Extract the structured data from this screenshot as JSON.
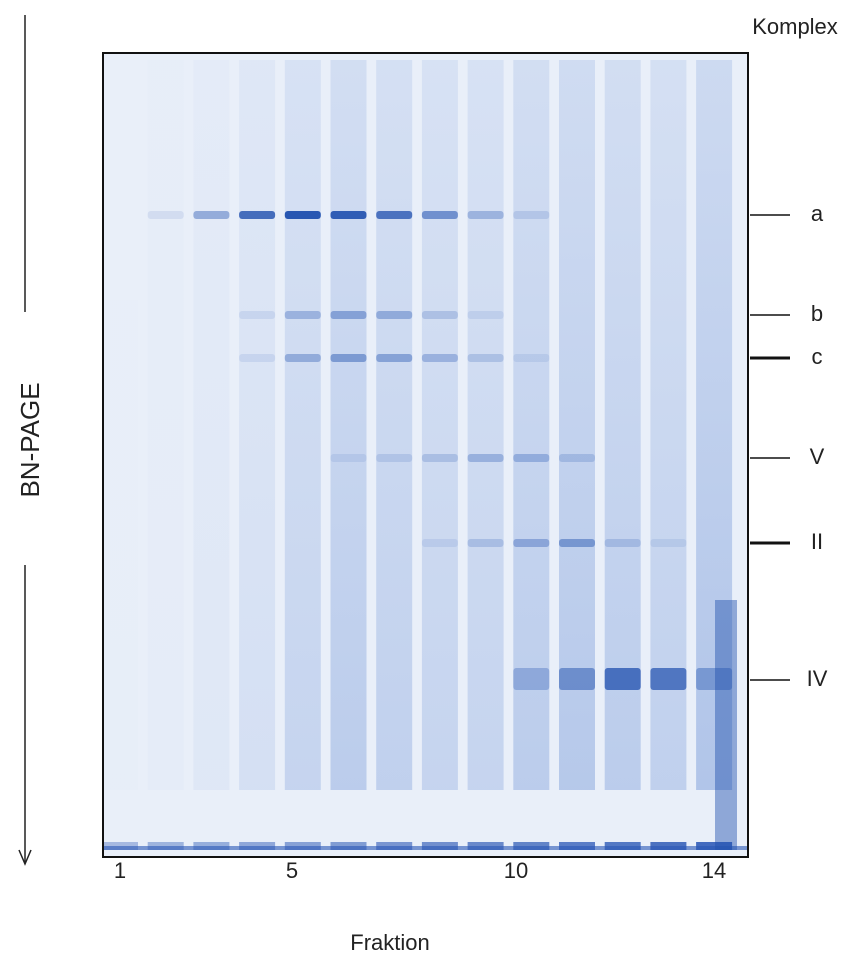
{
  "header": {
    "title": "Komplex"
  },
  "bands": [
    {
      "label": "a"
    },
    {
      "label": "b"
    },
    {
      "label": "c"
    },
    {
      "label": "V"
    },
    {
      "label": "II"
    },
    {
      "label": "IV"
    }
  ],
  "lanes": [
    {
      "label": "1"
    },
    {
      "label": "5"
    },
    {
      "label": "10"
    },
    {
      "label": "14"
    }
  ],
  "x_axis": {
    "label": "Fraktion"
  },
  "y_axis": {
    "label": "BN-PAGE"
  }
}
